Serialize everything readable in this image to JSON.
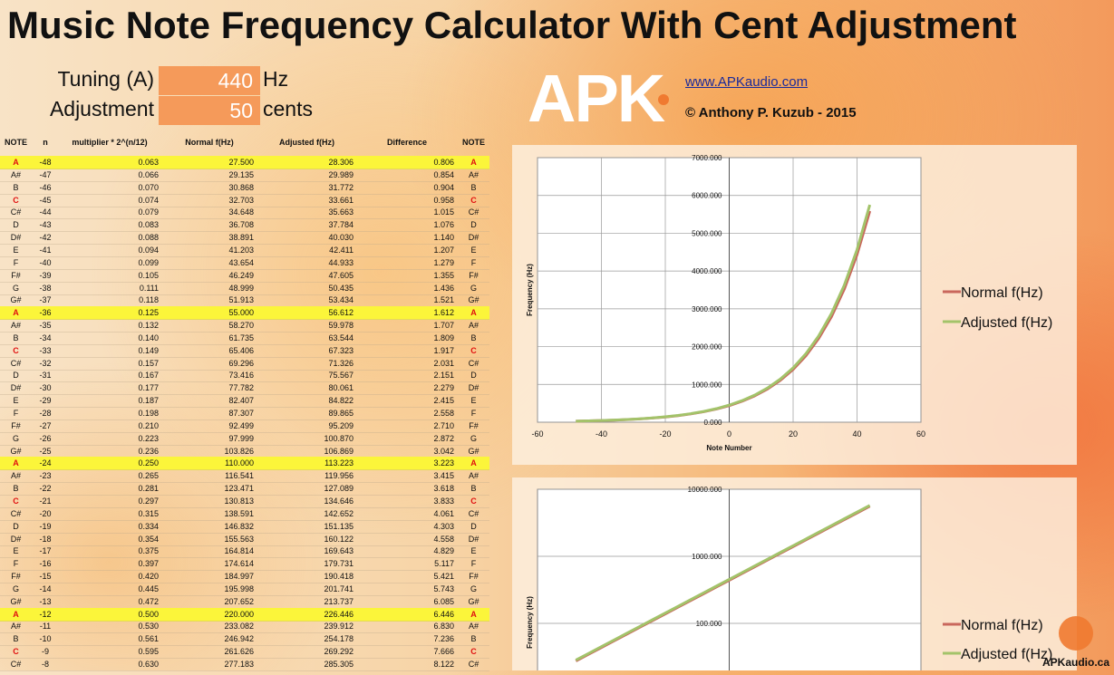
{
  "header": {
    "title": "Music Note Frequency Calculator With Cent Adjustment"
  },
  "settings": {
    "tuning_label": "Tuning (A)",
    "tuning_value": "440",
    "tuning_unit": "Hz",
    "adjustment_label": "Adjustment",
    "adjustment_value": "50",
    "adjustment_unit": "cents"
  },
  "branding": {
    "logo": "APK",
    "url": "www.APKaudio.com",
    "copyright": "© Anthony P. Kuzub - 2015",
    "footer": "APKaudio.ca"
  },
  "table": {
    "header": [
      "NOTE",
      "n",
      "multiplier * 2^(n/12)",
      "Normal f(Hz)",
      "Adjusted f(Hz)",
      "Difference",
      "NOTE"
    ],
    "rows": [
      [
        "A",
        "-48",
        "0.063",
        "27.500",
        "28.306",
        "0.806",
        "A"
      ],
      [
        "A#",
        "-47",
        "0.066",
        "29.135",
        "29.989",
        "0.854",
        "A#"
      ],
      [
        "B",
        "-46",
        "0.070",
        "30.868",
        "31.772",
        "0.904",
        "B"
      ],
      [
        "C",
        "-45",
        "0.074",
        "32.703",
        "33.661",
        "0.958",
        "C"
      ],
      [
        "C#",
        "-44",
        "0.079",
        "34.648",
        "35.663",
        "1.015",
        "C#"
      ],
      [
        "D",
        "-43",
        "0.083",
        "36.708",
        "37.784",
        "1.076",
        "D"
      ],
      [
        "D#",
        "-42",
        "0.088",
        "38.891",
        "40.030",
        "1.140",
        "D#"
      ],
      [
        "E",
        "-41",
        "0.094",
        "41.203",
        "42.411",
        "1.207",
        "E"
      ],
      [
        "F",
        "-40",
        "0.099",
        "43.654",
        "44.933",
        "1.279",
        "F"
      ],
      [
        "F#",
        "-39",
        "0.105",
        "46.249",
        "47.605",
        "1.355",
        "F#"
      ],
      [
        "G",
        "-38",
        "0.111",
        "48.999",
        "50.435",
        "1.436",
        "G"
      ],
      [
        "G#",
        "-37",
        "0.118",
        "51.913",
        "53.434",
        "1.521",
        "G#"
      ],
      [
        "A",
        "-36",
        "0.125",
        "55.000",
        "56.612",
        "1.612",
        "A"
      ],
      [
        "A#",
        "-35",
        "0.132",
        "58.270",
        "59.978",
        "1.707",
        "A#"
      ],
      [
        "B",
        "-34",
        "0.140",
        "61.735",
        "63.544",
        "1.809",
        "B"
      ],
      [
        "C",
        "-33",
        "0.149",
        "65.406",
        "67.323",
        "1.917",
        "C"
      ],
      [
        "C#",
        "-32",
        "0.157",
        "69.296",
        "71.326",
        "2.031",
        "C#"
      ],
      [
        "D",
        "-31",
        "0.167",
        "73.416",
        "75.567",
        "2.151",
        "D"
      ],
      [
        "D#",
        "-30",
        "0.177",
        "77.782",
        "80.061",
        "2.279",
        "D#"
      ],
      [
        "E",
        "-29",
        "0.187",
        "82.407",
        "84.822",
        "2.415",
        "E"
      ],
      [
        "F",
        "-28",
        "0.198",
        "87.307",
        "89.865",
        "2.558",
        "F"
      ],
      [
        "F#",
        "-27",
        "0.210",
        "92.499",
        "95.209",
        "2.710",
        "F#"
      ],
      [
        "G",
        "-26",
        "0.223",
        "97.999",
        "100.870",
        "2.872",
        "G"
      ],
      [
        "G#",
        "-25",
        "0.236",
        "103.826",
        "106.869",
        "3.042",
        "G#"
      ],
      [
        "A",
        "-24",
        "0.250",
        "110.000",
        "113.223",
        "3.223",
        "A"
      ],
      [
        "A#",
        "-23",
        "0.265",
        "116.541",
        "119.956",
        "3.415",
        "A#"
      ],
      [
        "B",
        "-22",
        "0.281",
        "123.471",
        "127.089",
        "3.618",
        "B"
      ],
      [
        "C",
        "-21",
        "0.297",
        "130.813",
        "134.646",
        "3.833",
        "C"
      ],
      [
        "C#",
        "-20",
        "0.315",
        "138.591",
        "142.652",
        "4.061",
        "C#"
      ],
      [
        "D",
        "-19",
        "0.334",
        "146.832",
        "151.135",
        "4.303",
        "D"
      ],
      [
        "D#",
        "-18",
        "0.354",
        "155.563",
        "160.122",
        "4.558",
        "D#"
      ],
      [
        "E",
        "-17",
        "0.375",
        "164.814",
        "169.643",
        "4.829",
        "E"
      ],
      [
        "F",
        "-16",
        "0.397",
        "174.614",
        "179.731",
        "5.117",
        "F"
      ],
      [
        "F#",
        "-15",
        "0.420",
        "184.997",
        "190.418",
        "5.421",
        "F#"
      ],
      [
        "G",
        "-14",
        "0.445",
        "195.998",
        "201.741",
        "5.743",
        "G"
      ],
      [
        "G#",
        "-13",
        "0.472",
        "207.652",
        "213.737",
        "6.085",
        "G#"
      ],
      [
        "A",
        "-12",
        "0.500",
        "220.000",
        "226.446",
        "6.446",
        "A"
      ],
      [
        "A#",
        "-11",
        "0.530",
        "233.082",
        "239.912",
        "6.830",
        "A#"
      ],
      [
        "B",
        "-10",
        "0.561",
        "246.942",
        "254.178",
        "7.236",
        "B"
      ],
      [
        "C",
        "-9",
        "0.595",
        "261.626",
        "269.292",
        "7.666",
        "C"
      ],
      [
        "C#",
        "-8",
        "0.630",
        "277.183",
        "285.305",
        "8.122",
        "C#"
      ]
    ]
  },
  "chart_data": [
    {
      "type": "line",
      "x_label": "Note Number",
      "y_label": "Frequency (Hz)",
      "x": [
        -48,
        -44,
        -40,
        -36,
        -32,
        -28,
        -24,
        -20,
        -16,
        -12,
        -8,
        -4,
        0,
        4,
        8,
        12,
        16,
        20,
        24,
        28,
        32,
        36,
        40,
        44
      ],
      "series": [
        {
          "name": "Normal f(Hz)",
          "color": "#c9675c",
          "values": [
            27.5,
            34.648,
            43.654,
            55,
            69.296,
            87.307,
            110,
            138.591,
            174.614,
            220,
            277.183,
            349.228,
            440,
            554.365,
            698.456,
            880,
            1108.731,
            1396.913,
            1760,
            2217.461,
            2793.826,
            3520,
            4434.922,
            5587.652
          ]
        },
        {
          "name": "Adjusted f(Hz)",
          "color": "#a3c36a",
          "values": [
            28.306,
            35.663,
            44.933,
            56.612,
            71.326,
            89.865,
            113.223,
            142.652,
            179.731,
            226.446,
            285.305,
            359.461,
            452.893,
            570.609,
            718.923,
            905.786,
            1141.219,
            1437.846,
            1811.572,
            2282.437,
            2875.691,
            3623.144,
            4564.875,
            5751.382
          ]
        }
      ],
      "xlim": [
        -60,
        60
      ],
      "xticks": [
        -60,
        -40,
        -20,
        0,
        20,
        40,
        60
      ],
      "ylim": [
        0,
        7000
      ],
      "yticks": [
        {
          "value": 0,
          "label": "0.000"
        },
        {
          "value": 1000,
          "label": "1000.000"
        },
        {
          "value": 2000,
          "label": "2000.000"
        },
        {
          "value": 3000,
          "label": "3000.000"
        },
        {
          "value": 4000,
          "label": "4000.000"
        },
        {
          "value": 5000,
          "label": "5000.000"
        },
        {
          "value": 6000,
          "label": "6000.000"
        },
        {
          "value": 7000,
          "label": "7000.000"
        }
      ],
      "log_scale": false,
      "grid": true
    },
    {
      "type": "line",
      "y_label": "Frequency (Hz)",
      "x": [
        -48,
        -44,
        -40,
        -36,
        -32,
        -28,
        -24,
        -20,
        -16,
        -12,
        -8,
        -4,
        0,
        4,
        8,
        12,
        16,
        20,
        24,
        28,
        32,
        36,
        40,
        44
      ],
      "series": [
        {
          "name": "Normal f(Hz)",
          "color": "#c9675c",
          "values": [
            27.5,
            34.648,
            43.654,
            55,
            69.296,
            87.307,
            110,
            138.591,
            174.614,
            220,
            277.183,
            349.228,
            440,
            554.365,
            698.456,
            880,
            1108.731,
            1396.913,
            1760,
            2217.461,
            2793.826,
            3520,
            4434.922,
            5587.652
          ]
        },
        {
          "name": "Adjusted f(Hz)",
          "color": "#a3c36a",
          "values": [
            28.306,
            35.663,
            44.933,
            56.612,
            71.326,
            89.865,
            113.223,
            142.652,
            179.731,
            226.446,
            285.305,
            359.461,
            452.893,
            570.609,
            718.923,
            905.786,
            1141.219,
            1437.846,
            1811.572,
            2282.437,
            2875.691,
            3623.144,
            4564.875,
            5751.382
          ]
        }
      ],
      "xlim": [
        -60,
        60
      ],
      "ylim": [
        10,
        10000
      ],
      "yticks": [
        {
          "value": 100,
          "label": "100.000"
        },
        {
          "value": 1000,
          "label": "1000.000"
        },
        {
          "value": 10000,
          "label": "10000.000"
        }
      ],
      "log_scale": true,
      "grid": true
    }
  ]
}
